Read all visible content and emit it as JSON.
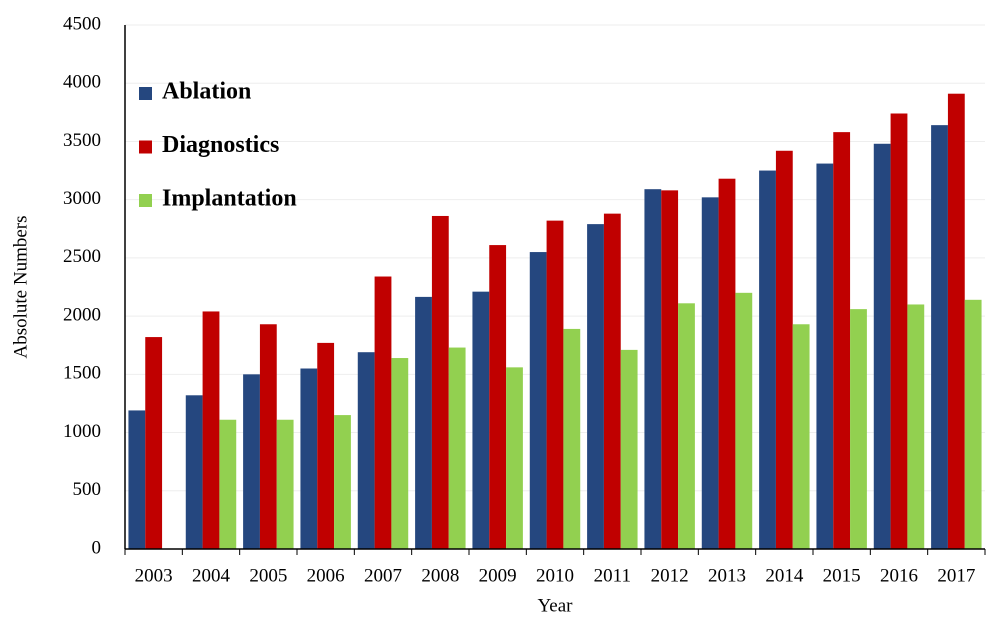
{
  "chart_data": {
    "type": "bar",
    "x_label": "Year",
    "y_label": "Absolute Numbers",
    "categories": [
      "2003",
      "2004",
      "2005",
      "2006",
      "2007",
      "2008",
      "2009",
      "2010",
      "2011",
      "2012",
      "2013",
      "2014",
      "2015",
      "2016",
      "2017"
    ],
    "series": [
      {
        "name": "Ablation",
        "color": "#25477f",
        "values": [
          1190,
          1320,
          1500,
          1550,
          1690,
          2165,
          2210,
          2550,
          2790,
          3090,
          3020,
          3250,
          3310,
          3480,
          3640
        ]
      },
      {
        "name": "Diagnostics",
        "color": "#c00000",
        "values": [
          1820,
          2040,
          1930,
          1770,
          2340,
          2860,
          2610,
          2820,
          2880,
          3080,
          3180,
          3420,
          3580,
          3740,
          3910
        ]
      },
      {
        "name": "Implantation",
        "color": "#92d050",
        "values": [
          null,
          1110,
          1110,
          1150,
          1640,
          1730,
          1560,
          1890,
          1710,
          2110,
          2200,
          1930,
          2060,
          2100,
          2140
        ]
      }
    ],
    "ylim": [
      0,
      4500
    ],
    "yticks": [
      0,
      500,
      1000,
      1500,
      2000,
      2500,
      3000,
      3500,
      4000,
      4500
    ],
    "grid": true,
    "legend": "upper-left"
  }
}
